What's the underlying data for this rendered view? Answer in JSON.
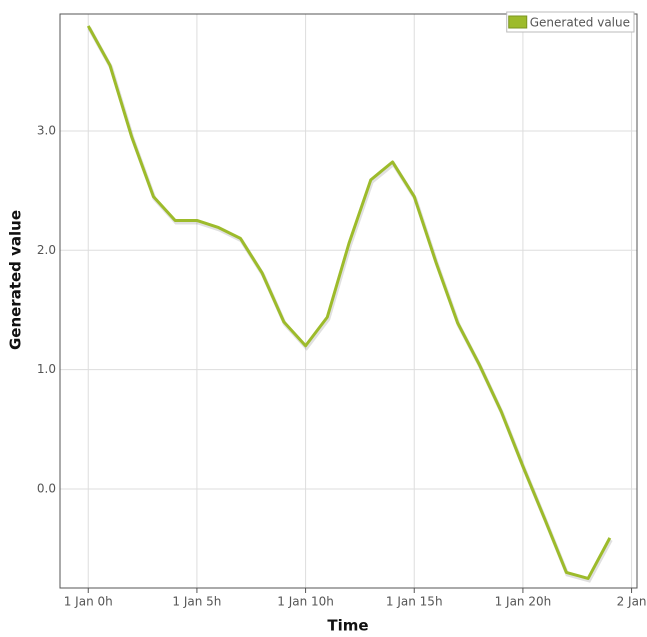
{
  "chart_data": {
    "type": "line",
    "x_label": "Time",
    "y_label": "Generated value",
    "x": [
      0,
      1,
      2,
      3,
      4,
      5,
      6,
      7,
      8,
      9,
      10,
      11,
      12,
      13,
      14,
      15,
      16,
      17,
      18,
      19,
      20,
      21,
      22,
      23,
      24
    ],
    "series": [
      {
        "name": "Generated value",
        "color": "#9dbb2b",
        "values": [
          3.88,
          3.55,
          2.95,
          2.45,
          2.25,
          2.25,
          2.19,
          2.1,
          1.81,
          1.4,
          1.2,
          1.44,
          2.06,
          2.59,
          2.74,
          2.45,
          1.9,
          1.39,
          1.04,
          0.65,
          0.19,
          -0.25,
          -0.7,
          -0.75,
          -0.41
        ]
      }
    ],
    "xlim": [
      -1.3,
      25.25
    ],
    "xticks": [
      {
        "value": 0,
        "label": "1 Jan 0h"
      },
      {
        "value": 5,
        "label": "1 Jan 5h"
      },
      {
        "value": 10,
        "label": "1 Jan 10h"
      },
      {
        "value": 15,
        "label": "1 Jan 15h"
      },
      {
        "value": 20,
        "label": "1 Jan 20h"
      },
      {
        "value": 25,
        "label": "2 Jan"
      }
    ],
    "ylim": [
      -0.83,
      3.98
    ],
    "yticks": [
      {
        "value": 0,
        "label": "0.0"
      },
      {
        "value": 1,
        "label": "1.0"
      },
      {
        "value": 2,
        "label": "2.0"
      },
      {
        "value": 3,
        "label": "3.0"
      }
    ],
    "grid": true,
    "legend": "top-right"
  }
}
